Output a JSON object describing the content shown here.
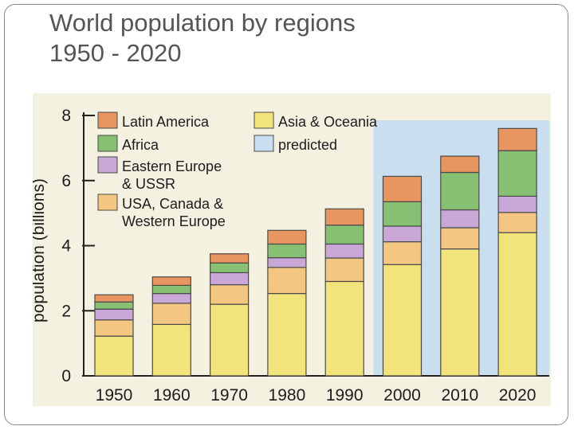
{
  "slide": {
    "title_line1": "World population by regions",
    "title_line2": "1950 - 2020"
  },
  "chart_data": {
    "type": "bar",
    "stacked": true,
    "title": "World population by regions 1950 - 2020",
    "xlabel": "",
    "ylabel": "population (billions)",
    "ylim": [
      0,
      8
    ],
    "yticks": [
      0,
      2,
      4,
      6,
      8
    ],
    "categories": [
      "1950",
      "1960",
      "1970",
      "1980",
      "1990",
      "2000",
      "2010",
      "2020"
    ],
    "predicted_from": "2000",
    "series": [
      {
        "name": "Asia & Oceania",
        "color": "#f2e37a",
        "values": [
          1.22,
          1.58,
          2.2,
          2.53,
          2.9,
          3.42,
          3.9,
          4.4
        ]
      },
      {
        "name": "USA, Canada & Western Europe",
        "color": "#f3c781",
        "values": [
          0.5,
          0.65,
          0.6,
          0.8,
          0.72,
          0.7,
          0.65,
          0.62
        ]
      },
      {
        "name": "Eastern Europe & USSR",
        "color": "#c9a7d6",
        "values": [
          0.33,
          0.3,
          0.37,
          0.3,
          0.43,
          0.48,
          0.55,
          0.5
        ]
      },
      {
        "name": "Africa",
        "color": "#87bf73",
        "values": [
          0.22,
          0.25,
          0.3,
          0.42,
          0.58,
          0.75,
          1.15,
          1.4
        ]
      },
      {
        "name": "Latin America",
        "color": "#e8955f",
        "values": [
          0.22,
          0.26,
          0.28,
          0.42,
          0.5,
          0.78,
          0.5,
          0.68
        ]
      }
    ],
    "legend": [
      {
        "label": "Latin America",
        "color": "#e8955f"
      },
      {
        "label": "Africa",
        "color": "#87bf73"
      },
      {
        "label": "Eastern Europe",
        "label2": "& USSR",
        "color": "#c9a7d6"
      },
      {
        "label": "USA, Canada &",
        "label2": "Western Europe",
        "color": "#f3c781"
      },
      {
        "label": "Asia & Oceania",
        "color": "#f2e37a"
      },
      {
        "label": "predicted",
        "color": "#c9dff0"
      }
    ],
    "legend_position": "top-left"
  }
}
